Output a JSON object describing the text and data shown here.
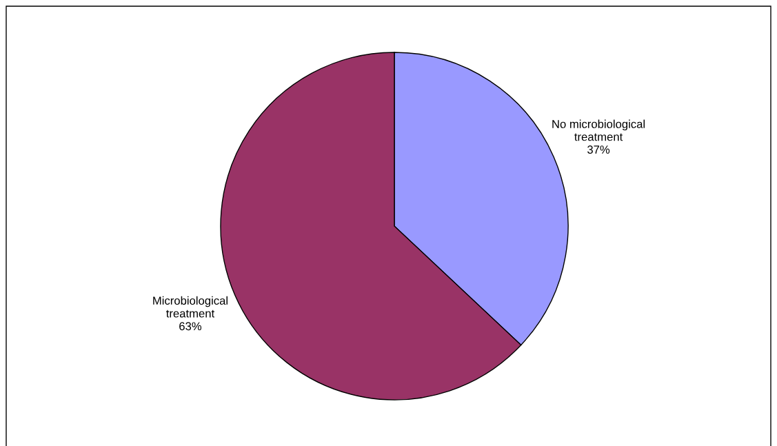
{
  "chart_data": {
    "type": "pie",
    "categories": [
      "No microbiological treatment",
      "Microbiological treatment"
    ],
    "values": [
      37,
      63
    ],
    "value_labels": [
      "37%",
      "63%"
    ],
    "colors": [
      "#9999ff",
      "#993366"
    ],
    "legend": false
  }
}
